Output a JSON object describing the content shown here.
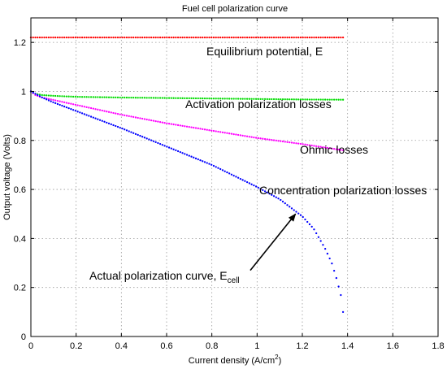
{
  "chart_data": {
    "type": "scatter",
    "title": "Fuel cell polarization curve",
    "xlabel": "Current density (A/cm",
    "xlabel_sup": "2",
    "xlabel_end": ")",
    "ylabel": "Output voltage (Volts)",
    "xlim": [
      0,
      1.8
    ],
    "ylim": [
      0,
      1.3
    ],
    "xticks": [
      0,
      0.2,
      0.4,
      0.6,
      0.8,
      1,
      1.2,
      1.4,
      1.6,
      1.8
    ],
    "xtick_labels": [
      "0",
      "0.2",
      "0.4",
      "0.6",
      "0.8",
      "1",
      "1.2",
      "1.4",
      "1.6",
      "1.8"
    ],
    "yticks": [
      0,
      0.2,
      0.4,
      0.6,
      0.8,
      1,
      1.2
    ],
    "ytick_labels": [
      "0",
      "0.2",
      "0.4",
      "0.6",
      "0.8",
      "1",
      "1.2"
    ],
    "grid": true,
    "series": [
      {
        "key": "equilibrium",
        "color": "#ff0000",
        "x": [
          0.0,
          1.38
        ],
        "y": [
          1.22,
          1.22
        ]
      },
      {
        "key": "activation",
        "color": "#00dd00",
        "x": [
          0.0,
          0.02,
          0.05,
          0.1,
          0.2,
          0.4,
          0.6,
          0.8,
          1.0,
          1.2,
          1.38
        ],
        "y": [
          1.0,
          0.99,
          0.985,
          0.982,
          0.978,
          0.975,
          0.973,
          0.971,
          0.969,
          0.967,
          0.966
        ]
      },
      {
        "key": "ohmic",
        "color": "#ff00ff",
        "x": [
          0.0,
          0.02,
          0.05,
          0.1,
          0.2,
          0.4,
          0.6,
          0.8,
          1.0,
          1.2,
          1.38
        ],
        "y": [
          1.0,
          0.985,
          0.975,
          0.965,
          0.945,
          0.905,
          0.87,
          0.84,
          0.81,
          0.785,
          0.76
        ]
      },
      {
        "key": "actual",
        "color": "#0000ff",
        "x": [
          0.0,
          0.05,
          0.1,
          0.2,
          0.4,
          0.6,
          0.8,
          1.0,
          1.1,
          1.2,
          1.25,
          1.3,
          1.33,
          1.35,
          1.37,
          1.38
        ],
        "y": [
          1.0,
          0.975,
          0.955,
          0.92,
          0.85,
          0.775,
          0.7,
          0.61,
          0.56,
          0.49,
          0.44,
          0.36,
          0.3,
          0.24,
          0.17,
          0.1
        ]
      }
    ],
    "annotations": {
      "equilibrium": "Equilibrium potential, E",
      "activation": "Activation polarization losses",
      "ohmic": "Ohmic losses",
      "concentration": "Concentration polarization losses",
      "actual": "Actual polarization curve, E",
      "actual_sub": "cell"
    },
    "arrow": {
      "from": [
        0.97,
        0.27
      ],
      "to": [
        1.17,
        0.5
      ]
    }
  }
}
